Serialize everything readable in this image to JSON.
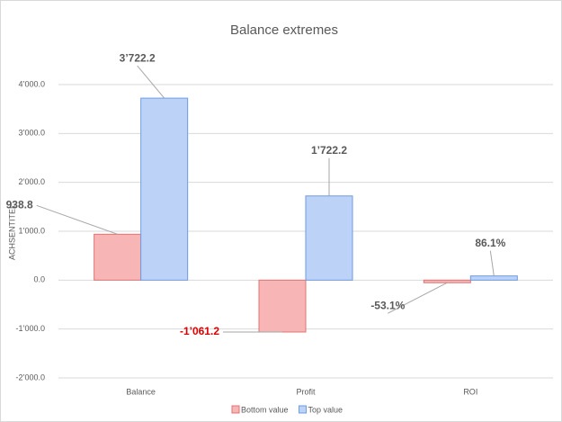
{
  "chart_data": {
    "type": "bar",
    "title": "Balance extremes",
    "y_label": "ACHSENTITEL",
    "categories": [
      "Balance",
      "Profit",
      "ROI"
    ],
    "series": [
      {
        "name": "Bottom value",
        "color": "#f7b5b5",
        "border": "#e07474",
        "values": [
          938.8,
          -1061.2,
          -53.1
        ],
        "value_labels": [
          "938.8",
          "-1’061.2",
          "-53.1%"
        ]
      },
      {
        "name": "Top value",
        "color": "#bcd3f7",
        "border": "#6f9be0",
        "values": [
          3722.2,
          1722.2,
          86.1
        ],
        "value_labels": [
          "3’722.2",
          "1’722.2",
          "86.1%"
        ]
      }
    ],
    "ylim": [
      -2000,
      4000
    ],
    "yticks": [
      {
        "value": -2000,
        "label": "-2’000.0"
      },
      {
        "value": -1000,
        "label": "-1’000.0"
      },
      {
        "value": 0,
        "label": "0.0"
      },
      {
        "value": 1000,
        "label": "1’000.0"
      },
      {
        "value": 2000,
        "label": "2’000.0"
      },
      {
        "value": 3000,
        "label": "3’000.0"
      },
      {
        "value": 4000,
        "label": "4’000.0"
      }
    ],
    "grid": true,
    "legend": "bottom"
  }
}
